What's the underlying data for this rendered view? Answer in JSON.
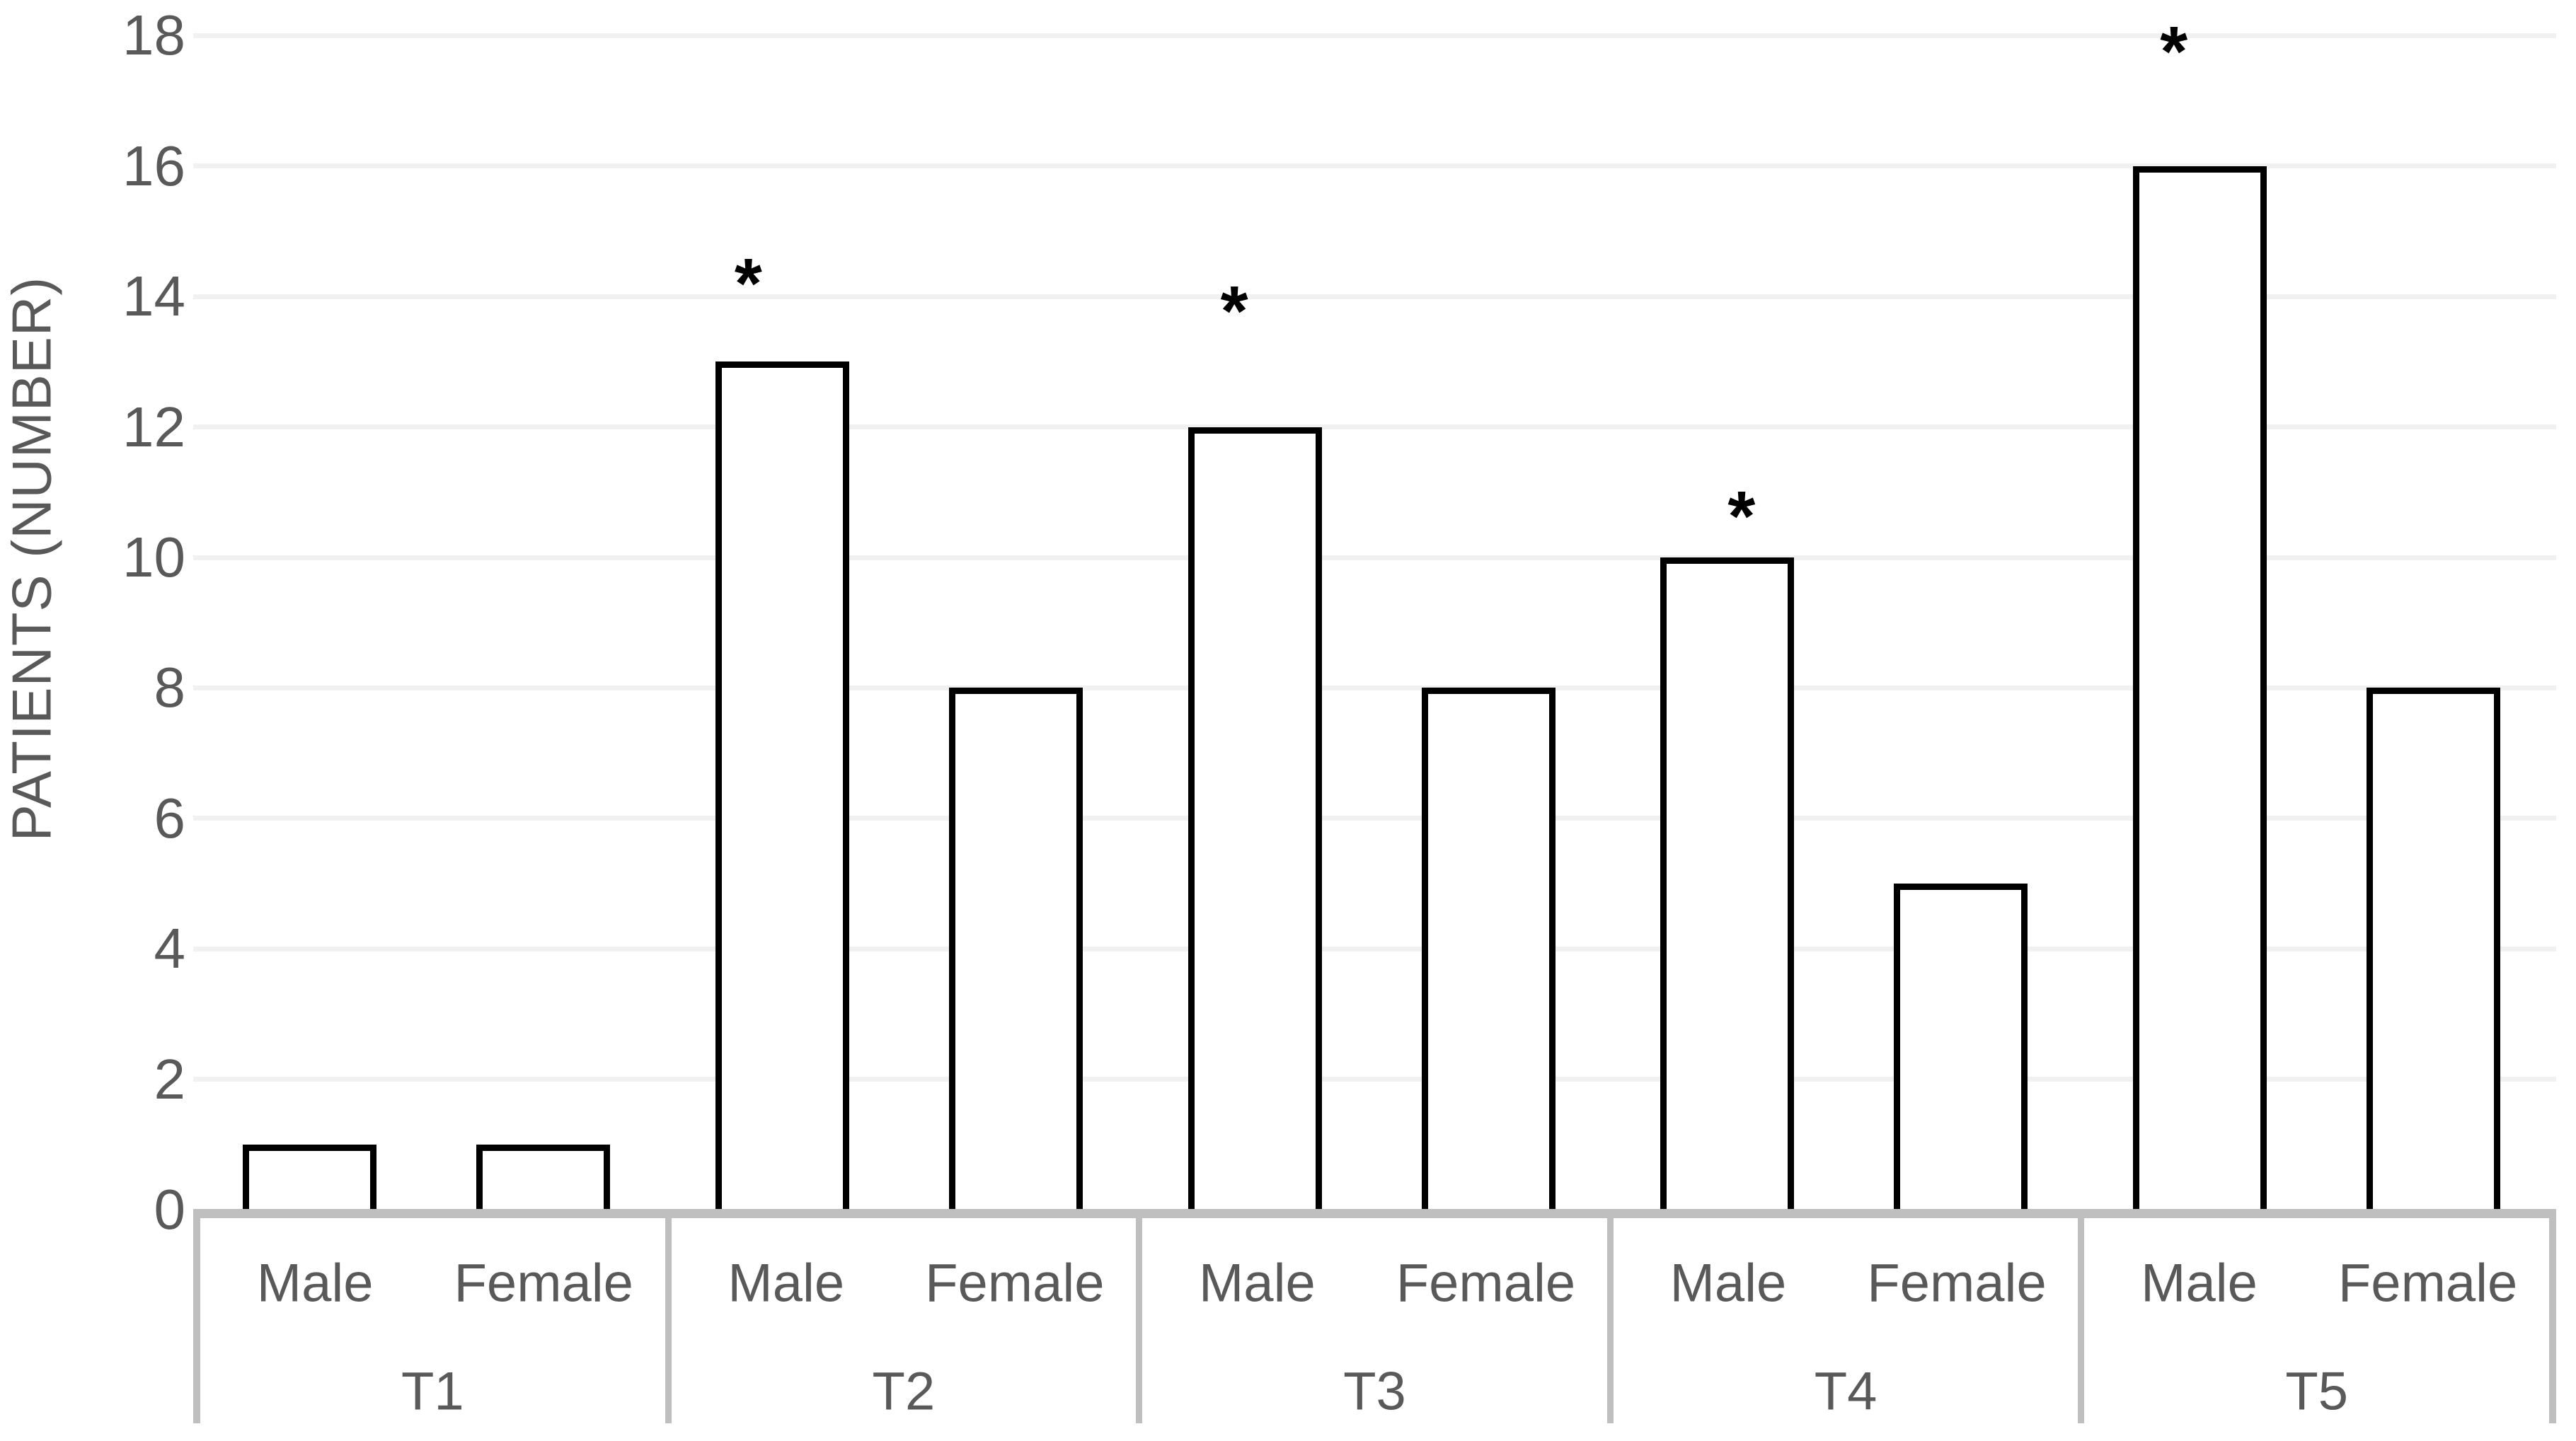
{
  "chart_data": {
    "type": "bar",
    "title": "",
    "xlabel": "",
    "ylabel": "PATIENTS (NUMBER)",
    "ylim": [
      0,
      18
    ],
    "ytick_step": 2,
    "yticks": [
      "0",
      "2",
      "4",
      "6",
      "8",
      "10",
      "12",
      "14",
      "16",
      "18"
    ],
    "grid": true,
    "legend": "none",
    "categories": [
      "T1",
      "T2",
      "T3",
      "T4",
      "T5"
    ],
    "series_labels_in_groups": [
      "Male",
      "Female"
    ],
    "series": [
      {
        "name": "Male",
        "values": [
          1,
          13,
          12,
          10,
          16
        ]
      },
      {
        "name": "Female",
        "values": [
          1,
          8,
          8,
          5,
          8
        ]
      }
    ],
    "annotations": [
      {
        "category": "T2",
        "series": "Male",
        "symbol": "*"
      },
      {
        "category": "T3",
        "series": "Male",
        "symbol": "*"
      },
      {
        "category": "T4",
        "series": "Male",
        "symbol": "*"
      },
      {
        "category": "T5",
        "series": "Male",
        "symbol": "*"
      }
    ],
    "bar_style": {
      "fill": "#ffffff",
      "stroke": "#000000"
    }
  },
  "colors": {
    "text": "#595959",
    "axis_line": "#bfbfbf",
    "gridline": "#f1f1f1",
    "marker": "#000000",
    "background": "#ffffff"
  }
}
